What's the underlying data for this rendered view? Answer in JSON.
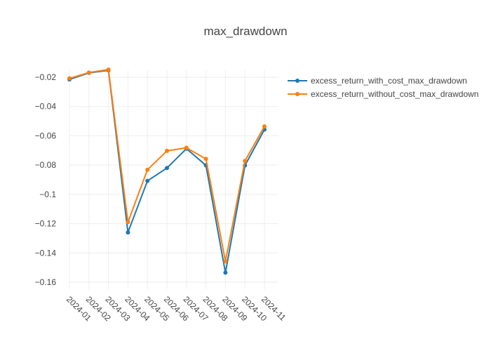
{
  "chart_data": {
    "type": "line",
    "title": "max_drawdown",
    "xlabel": "",
    "ylabel": "",
    "categories": [
      "2024-01",
      "2024-02",
      "2024-03",
      "2024-04",
      "2024-05",
      "2024-06",
      "2024-07",
      "2024-08",
      "2024-09",
      "2024-10",
      "2024-11"
    ],
    "series": [
      {
        "name": "excess_return_with_cost_max_drawdown",
        "color": "#1f77b4",
        "values": [
          -0.0215,
          -0.017,
          -0.0153,
          -0.126,
          -0.0908,
          -0.082,
          -0.0688,
          -0.0802,
          -0.1535,
          -0.0803,
          -0.0557
        ]
      },
      {
        "name": "excess_return_without_cost_max_drawdown",
        "color": "#ff7f0e",
        "values": [
          -0.0208,
          -0.0168,
          -0.0148,
          -0.119,
          -0.0832,
          -0.0703,
          -0.0682,
          -0.0758,
          -0.1458,
          -0.0772,
          -0.0536
        ]
      }
    ],
    "ylim": [
      -0.1648,
      -0.0152
    ],
    "yticks": [
      -0.02,
      -0.04,
      -0.06,
      -0.08,
      -0.1,
      -0.12,
      -0.14,
      -0.16
    ],
    "ytick_labels": [
      "−0.02",
      "−0.04",
      "−0.06",
      "−0.08",
      "−0.1",
      "−0.12",
      "−0.14",
      "−0.16"
    ],
    "grid": true,
    "legend_position": "top-right"
  }
}
